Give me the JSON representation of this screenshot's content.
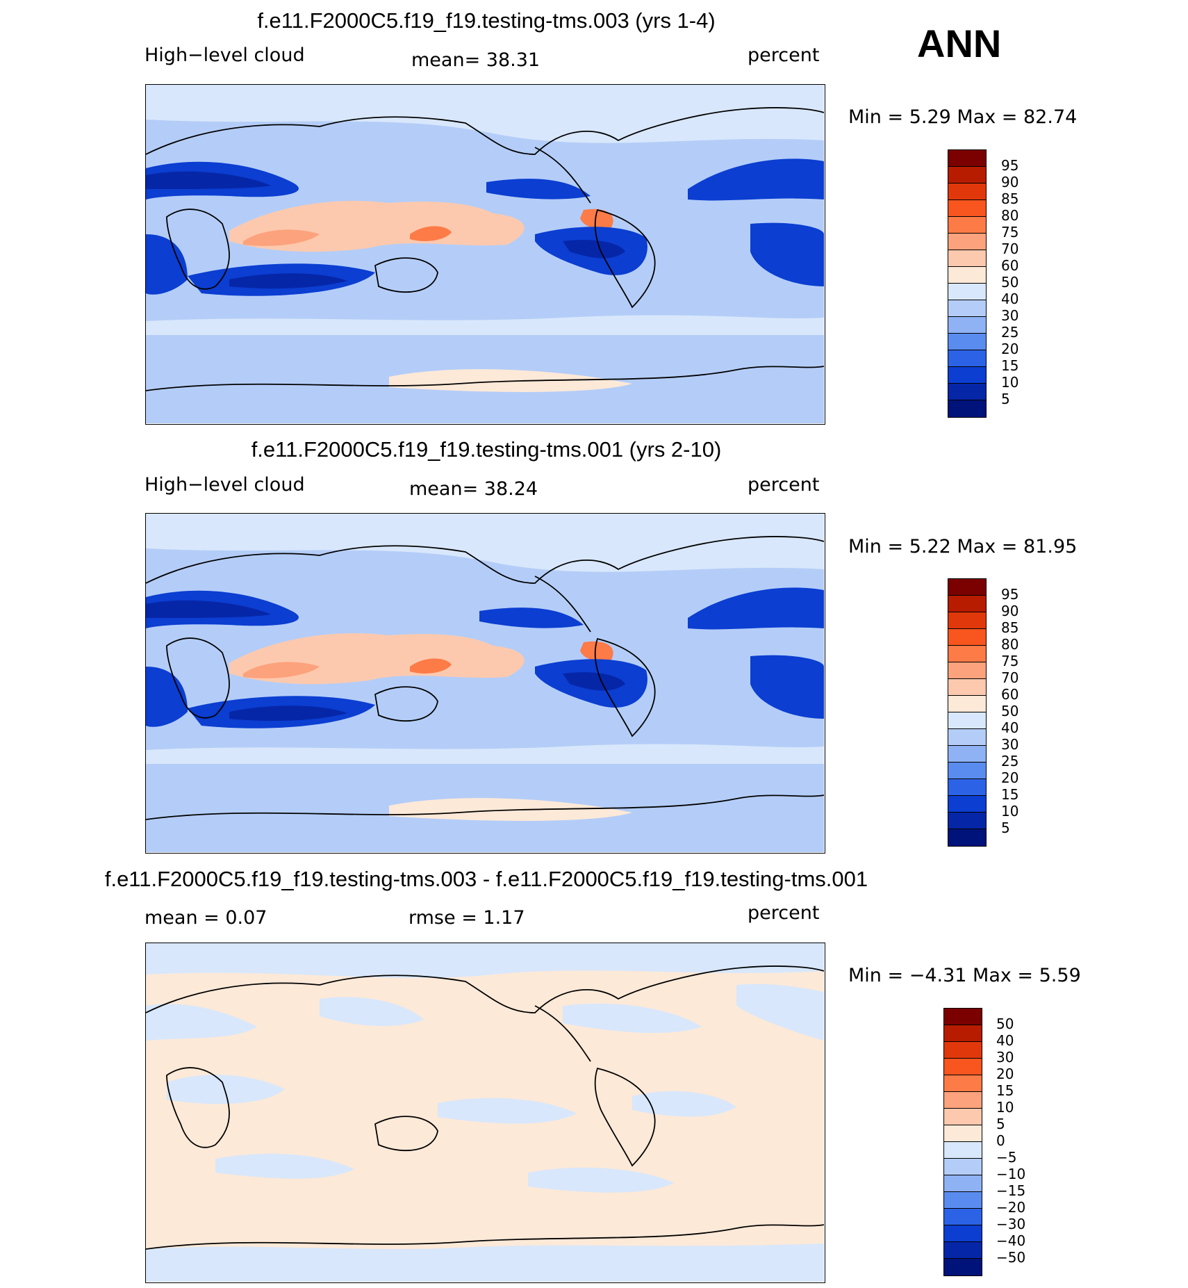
{
  "season": "ANN",
  "panels": [
    {
      "title": "f.e11.F2000C5.f19_f19.testing-tms.003 (yrs 1-4)",
      "left_label": "High−level cloud",
      "center_label": "mean=   38.31",
      "units": "percent",
      "minmax": "Min =    5.29  Max =   82.74",
      "colorbar": {
        "labels": [
          "95",
          "90",
          "85",
          "80",
          "75",
          "70",
          "60",
          "50",
          "40",
          "30",
          "25",
          "20",
          "15",
          "10",
          "5"
        ],
        "colors": [
          "#7b0000",
          "#b81c00",
          "#e1380b",
          "#f8551f",
          "#fd7b47",
          "#fca27c",
          "#fcc9ae",
          "#fde9d8",
          "#d8e7fb",
          "#b4cdf8",
          "#8fb2f5",
          "#5a8cf0",
          "#2c63e6",
          "#0b3ed1",
          "#0626a8",
          "#00137a"
        ]
      },
      "chart_data": {
        "type": "heatmap",
        "variable": "High-level cloud",
        "units": "percent",
        "mean": 38.31,
        "min": 5.29,
        "max": 82.74,
        "levels": [
          5,
          10,
          15,
          20,
          25,
          30,
          40,
          50,
          60,
          70,
          75,
          80,
          85,
          90,
          95
        ]
      }
    },
    {
      "title": "f.e11.F2000C5.f19_f19.testing-tms.001 (yrs 2-10)",
      "left_label": "High−level cloud",
      "center_label": "mean=   38.24",
      "units": "percent",
      "minmax": "Min =    5.22  Max =   81.95",
      "colorbar": {
        "labels": [
          "95",
          "90",
          "85",
          "80",
          "75",
          "70",
          "60",
          "50",
          "40",
          "30",
          "25",
          "20",
          "15",
          "10",
          "5"
        ],
        "colors": [
          "#7b0000",
          "#b81c00",
          "#e1380b",
          "#f8551f",
          "#fd7b47",
          "#fca27c",
          "#fcc9ae",
          "#fde9d8",
          "#d8e7fb",
          "#b4cdf8",
          "#8fb2f5",
          "#5a8cf0",
          "#2c63e6",
          "#0b3ed1",
          "#0626a8",
          "#00137a"
        ]
      },
      "chart_data": {
        "type": "heatmap",
        "variable": "High-level cloud",
        "units": "percent",
        "mean": 38.24,
        "min": 5.22,
        "max": 81.95,
        "levels": [
          5,
          10,
          15,
          20,
          25,
          30,
          40,
          50,
          60,
          70,
          75,
          80,
          85,
          90,
          95
        ]
      }
    },
    {
      "title": "f.e11.F2000C5.f19_f19.testing-tms.003 - f.e11.F2000C5.f19_f19.testing-tms.001",
      "mean_label": "mean =    0.07",
      "rmse_label": "rmse =    1.17",
      "units": "percent",
      "minmax": "Min =  −4.31  Max =    5.59",
      "colorbar": {
        "labels": [
          "50",
          "40",
          "30",
          "20",
          "15",
          "10",
          "5",
          "0",
          "−5",
          "−10",
          "−15",
          "−20",
          "−30",
          "−40",
          "−50"
        ],
        "colors": [
          "#7b0000",
          "#b81c00",
          "#e1380b",
          "#f8551f",
          "#fd7b47",
          "#fca27c",
          "#fcc9ae",
          "#fde9d8",
          "#d8e7fb",
          "#b4cdf8",
          "#8fb2f5",
          "#5a8cf0",
          "#2c63e6",
          "#0b3ed1",
          "#0626a8",
          "#00137a"
        ]
      },
      "chart_data": {
        "type": "heatmap",
        "variable": "difference",
        "units": "percent",
        "mean": 0.07,
        "rmse": 1.17,
        "min": -4.31,
        "max": 5.59,
        "levels": [
          -50,
          -40,
          -30,
          -20,
          -15,
          -10,
          -5,
          0,
          5,
          10,
          15,
          20,
          30,
          40,
          50
        ]
      }
    }
  ]
}
